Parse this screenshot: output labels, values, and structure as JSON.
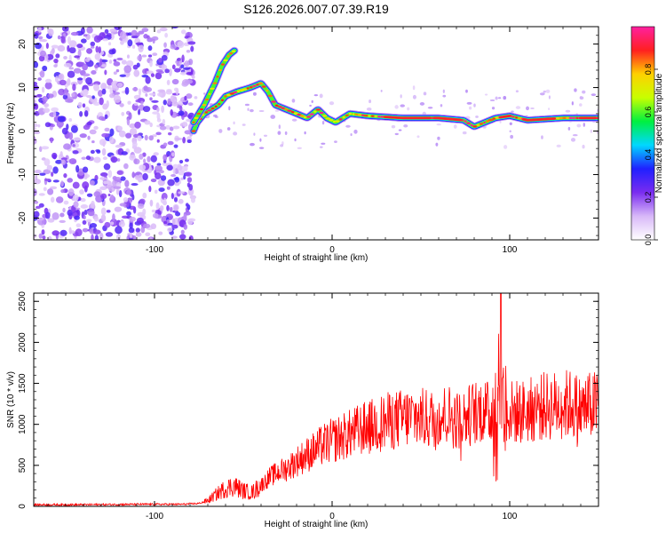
{
  "figure": {
    "title": "S126.2026.007.07.39.R19"
  },
  "chart_data": [
    {
      "type": "heatmap",
      "title": "S126.2026.007.07.39.R19",
      "xlabel": "Height of straight line (km)",
      "ylabel": "Frequency (Hz)",
      "xlim": [
        -168,
        150
      ],
      "ylim": [
        -25,
        24
      ],
      "xticks": [
        -100,
        0,
        100
      ],
      "yticks": [
        20,
        10,
        0,
        -10,
        -20
      ],
      "noise_region_x": [
        -168,
        -78
      ],
      "ridge": [
        {
          "x": -78,
          "y": 0
        },
        {
          "x": -76,
          "y": 2
        },
        {
          "x": -72,
          "y": 4
        },
        {
          "x": -68,
          "y": 5
        },
        {
          "x": -64,
          "y": 6
        },
        {
          "x": -60,
          "y": 8
        },
        {
          "x": -54,
          "y": 9
        },
        {
          "x": -46,
          "y": 10
        },
        {
          "x": -40,
          "y": 11
        },
        {
          "x": -36,
          "y": 9
        },
        {
          "x": -32,
          "y": 6
        },
        {
          "x": -26,
          "y": 5
        },
        {
          "x": -20,
          "y": 4
        },
        {
          "x": -14,
          "y": 3
        },
        {
          "x": -8,
          "y": 5
        },
        {
          "x": -3,
          "y": 3
        },
        {
          "x": 2,
          "y": 2
        },
        {
          "x": 10,
          "y": 4
        },
        {
          "x": 20,
          "y": 3.5
        },
        {
          "x": 40,
          "y": 3
        },
        {
          "x": 60,
          "y": 3
        },
        {
          "x": 74,
          "y": 2.5
        },
        {
          "x": 80,
          "y": 1
        },
        {
          "x": 86,
          "y": 2
        },
        {
          "x": 92,
          "y": 3
        },
        {
          "x": 100,
          "y": 3.5
        },
        {
          "x": 110,
          "y": 2.5
        },
        {
          "x": 130,
          "y": 3
        },
        {
          "x": 150,
          "y": 3
        }
      ],
      "branch": [
        {
          "x": -78,
          "y": 2
        },
        {
          "x": -72,
          "y": 6
        },
        {
          "x": -66,
          "y": 11
        },
        {
          "x": -62,
          "y": 15
        },
        {
          "x": -58,
          "y": 17.5
        },
        {
          "x": -55,
          "y": 18.5
        }
      ],
      "colorbar": {
        "label": "Normalized spectral amplitude",
        "range": [
          0,
          1
        ],
        "ticks": [
          0.0,
          0.2,
          0.4,
          0.6,
          0.8
        ],
        "tick_labels": [
          "0.0",
          "0.2",
          "0.4",
          "0.6",
          "0.8"
        ],
        "colors": [
          "#ffffff",
          "#d8b8f8",
          "#7a2cf0",
          "#2020ff",
          "#00d8ff",
          "#00f040",
          "#c8ff00",
          "#ffd000",
          "#ff2020",
          "#ff20a0"
        ]
      }
    },
    {
      "type": "line",
      "xlabel": "Height of straight line (km)",
      "ylabel": "SNR (10 * v/v)",
      "xlim": [
        -168,
        150
      ],
      "ylim": [
        0,
        2600
      ],
      "xticks": [
        -100,
        0,
        100
      ],
      "yticks": [
        0,
        500,
        1000,
        1500,
        2000,
        2500
      ],
      "series": [
        {
          "name": "SNR",
          "color": "#ff0000",
          "x": [
            -168,
            -140,
            -110,
            -85,
            -75,
            -70,
            -65,
            -60,
            -55,
            -50,
            -45,
            -40,
            -35,
            -30,
            -25,
            -20,
            -15,
            -10,
            -5,
            0,
            5,
            10,
            15,
            20,
            25,
            30,
            35,
            40,
            45,
            50,
            55,
            60,
            65,
            70,
            75,
            80,
            85,
            90,
            95,
            100,
            105,
            110,
            115,
            120,
            125,
            130,
            135,
            140,
            145,
            150
          ],
          "y": [
            20,
            20,
            25,
            25,
            35,
            70,
            150,
            220,
            250,
            190,
            170,
            260,
            360,
            420,
            470,
            550,
            620,
            680,
            750,
            800,
            840,
            880,
            930,
            960,
            1000,
            1030,
            1050,
            1070,
            1090,
            1080,
            1060,
            1100,
            1120,
            1050,
            1080,
            1150,
            1180,
            1100,
            1250,
            1150,
            1150,
            1160,
            1200,
            1220,
            1230,
            1240,
            1250,
            1180,
            1220,
            1240
          ]
        }
      ]
    }
  ]
}
